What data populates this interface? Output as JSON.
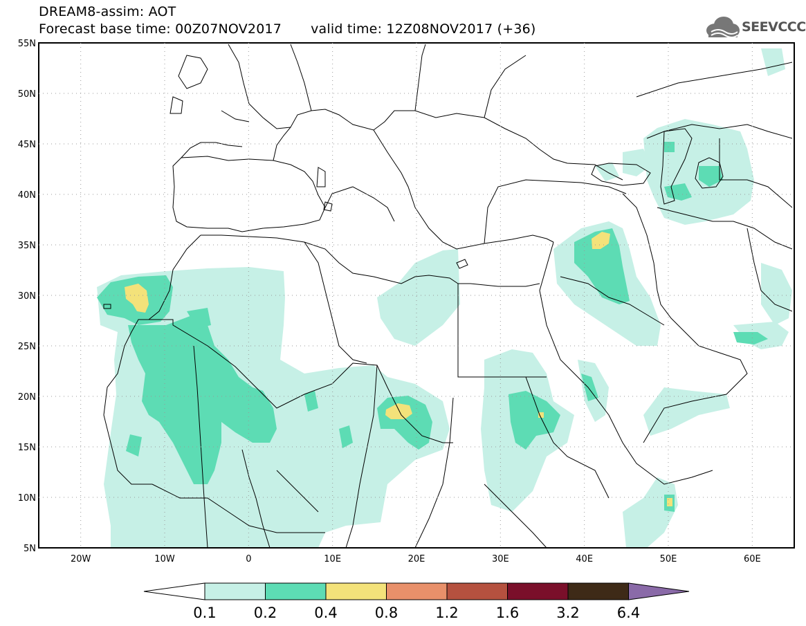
{
  "title": {
    "line1": "DREAM8-assim: AOT",
    "base_time": "Forecast base time: 00Z07NOV2017",
    "valid_time": "valid time: 12Z08NOV2017 (+36)"
  },
  "logo": {
    "text": "SEEVCCC",
    "icon": "cloud-icon"
  },
  "map": {
    "lat_labels": [
      "55N",
      "50N",
      "45N",
      "40N",
      "35N",
      "30N",
      "25N",
      "20N",
      "15N",
      "10N",
      "5N"
    ],
    "lon_labels": [
      "20W",
      "10W",
      "0",
      "10E",
      "20E",
      "30E",
      "40E",
      "50E",
      "60E"
    ],
    "lon_range": [
      -25,
      65
    ],
    "lat_range": [
      5,
      55
    ]
  },
  "colorbar": {
    "labels": [
      "0.1",
      "0.2",
      "0.4",
      "0.8",
      "1.2",
      "1.6",
      "3.2",
      "6.4"
    ],
    "colors": [
      "#c6f0e6",
      "#5ddcb4",
      "#f3e27a",
      "#e8906a",
      "#b5513f",
      "#7a0f2a",
      "#3e2a17"
    ],
    "under_color": "#ffffff",
    "over_color": "#8a6aa8"
  },
  "colors": {
    "level1": "#c6f0e6",
    "level2": "#5ddcb4",
    "level3": "#f3e27a"
  }
}
